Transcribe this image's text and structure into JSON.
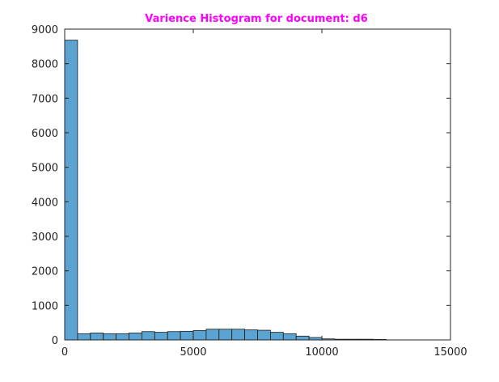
{
  "chart_data": {
    "type": "bar",
    "title": "Varience Histogram for document: d6",
    "xlabel": "",
    "ylabel": "",
    "xlim": [
      0,
      15000
    ],
    "ylim": [
      0,
      9000
    ],
    "xticks": [
      0,
      5000,
      10000,
      15000
    ],
    "yticks": [
      0,
      1000,
      2000,
      3000,
      4000,
      5000,
      6000,
      7000,
      8000,
      9000
    ],
    "bin_width": 500,
    "bin_starts": [
      0,
      500,
      1000,
      1500,
      2000,
      2500,
      3000,
      3500,
      4000,
      4500,
      5000,
      5500,
      6000,
      6500,
      7000,
      7500,
      8000,
      8500,
      9000,
      9500,
      10000,
      10500,
      11000,
      11500,
      12000
    ],
    "values": [
      8680,
      180,
      200,
      180,
      180,
      200,
      240,
      220,
      240,
      250,
      270,
      310,
      310,
      310,
      290,
      280,
      220,
      180,
      110,
      70,
      30,
      20,
      20,
      20,
      15
    ],
    "grid": false,
    "legend": "none",
    "colors": {
      "bar_fill": "#5ba3d0",
      "bar_edge": "#1a1a1a",
      "title": "#ff00ff",
      "axes": "#262626"
    }
  }
}
